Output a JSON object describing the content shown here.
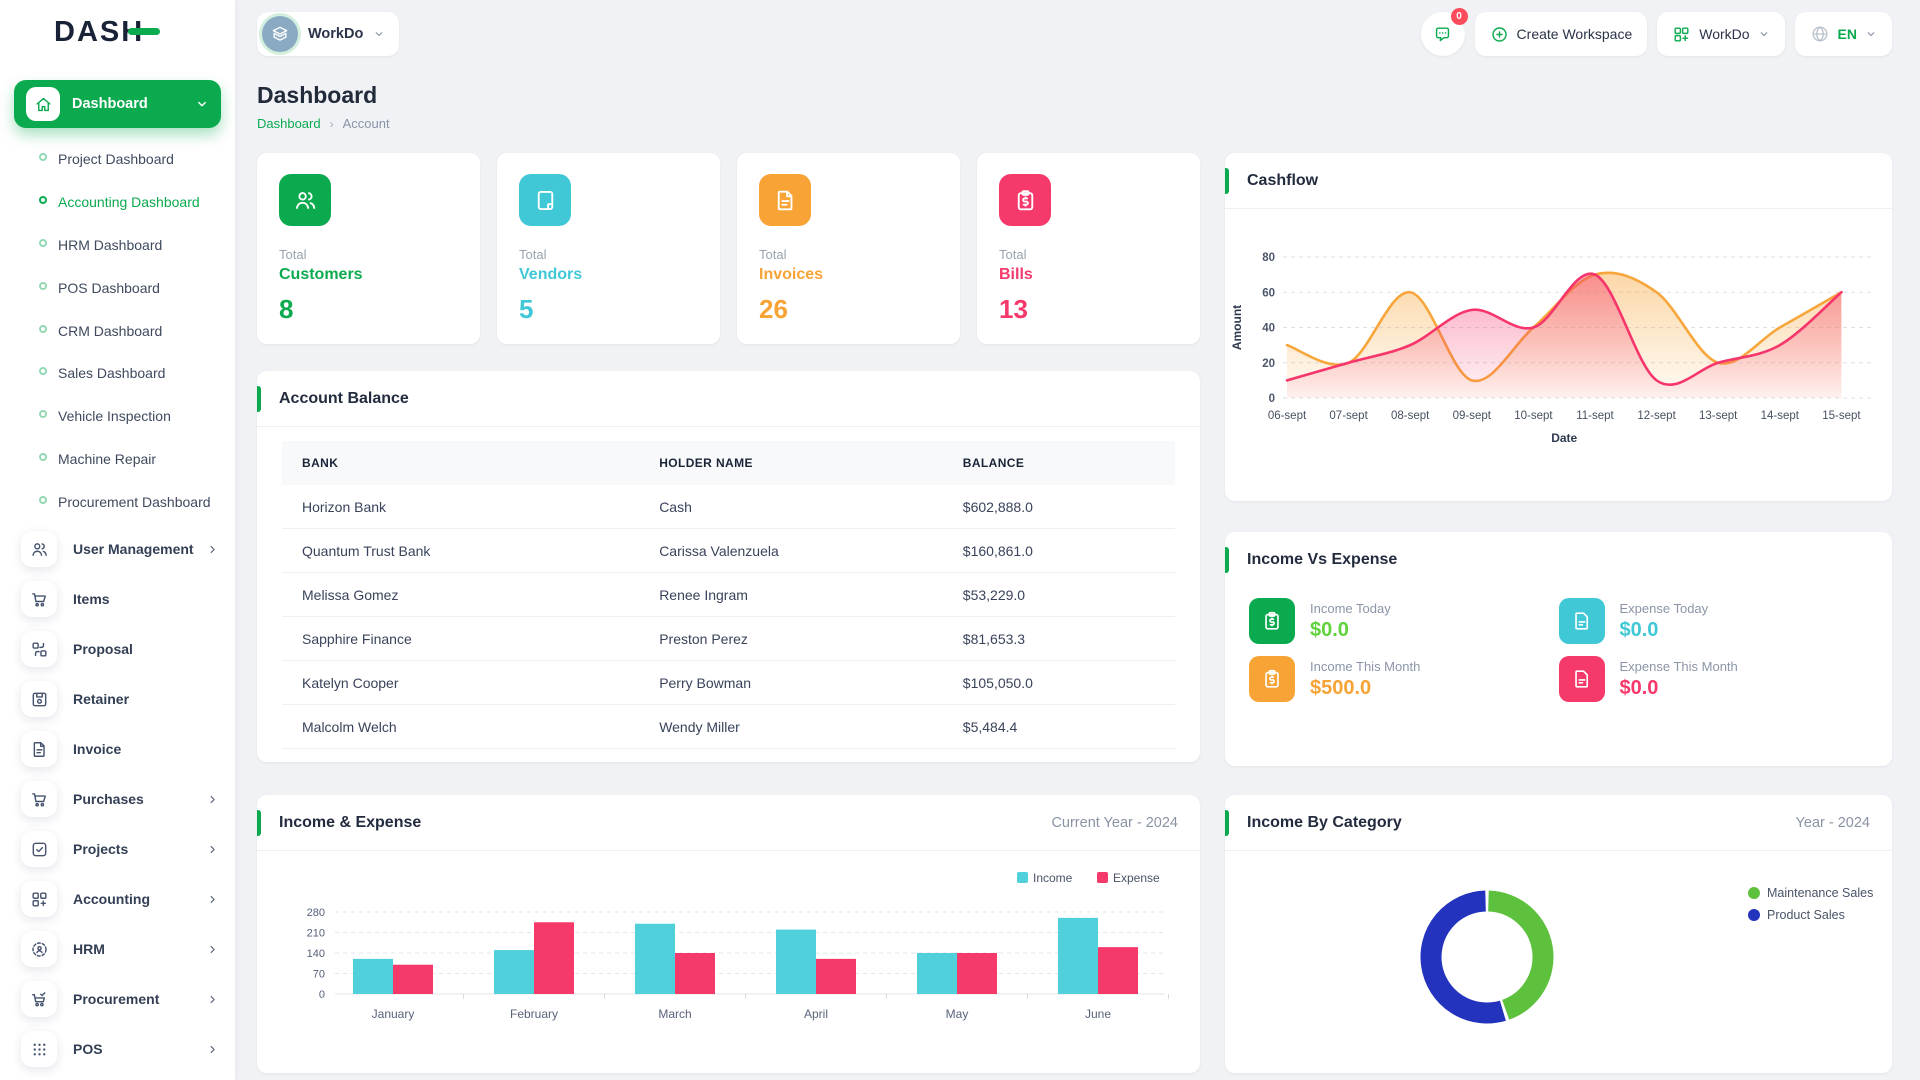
{
  "app": {
    "logo": "DASH"
  },
  "topbar": {
    "workspace_chip": {
      "label": "WorkDo",
      "icon": "building-icon"
    },
    "notification": {
      "icon": "chat-icon",
      "badge": "0"
    },
    "create_workspace": {
      "label": "Create Workspace",
      "icon": "plus-circle-icon"
    },
    "workspace_menu": {
      "label": "WorkDo",
      "icon": "apps-icon"
    },
    "language": {
      "label": "EN",
      "icon": "globe-icon"
    }
  },
  "page": {
    "title": "Dashboard",
    "breadcrumb": {
      "parent": "Dashboard",
      "current": "Account"
    }
  },
  "sidebar": {
    "items": [
      {
        "type": "parent",
        "label": "Dashboard",
        "icon": "home-icon",
        "active": true
      },
      {
        "type": "sub",
        "label": "Project Dashboard"
      },
      {
        "type": "sub",
        "label": "Accounting Dashboard",
        "active": true
      },
      {
        "type": "sub",
        "label": "HRM Dashboard"
      },
      {
        "type": "sub",
        "label": "POS Dashboard"
      },
      {
        "type": "sub",
        "label": "CRM Dashboard"
      },
      {
        "type": "sub",
        "label": "Sales Dashboard"
      },
      {
        "type": "sub",
        "label": "Vehicle Inspection"
      },
      {
        "type": "sub",
        "label": "Machine Repair"
      },
      {
        "type": "sub",
        "label": "Procurement Dashboard"
      },
      {
        "type": "icon",
        "label": "User Management",
        "icon": "users-icon",
        "chevron": true
      },
      {
        "type": "icon",
        "label": "Items",
        "icon": "cart-icon"
      },
      {
        "type": "icon",
        "label": "Proposal",
        "icon": "proposal-icon"
      },
      {
        "type": "icon",
        "label": "Retainer",
        "icon": "retainer-icon"
      },
      {
        "type": "icon",
        "label": "Invoice",
        "icon": "invoice-icon"
      },
      {
        "type": "icon",
        "label": "Purchases",
        "icon": "cart-icon",
        "chevron": true
      },
      {
        "type": "icon",
        "label": "Projects",
        "icon": "projects-icon",
        "chevron": true
      },
      {
        "type": "icon",
        "label": "Accounting",
        "icon": "accounting-icon",
        "chevron": true
      },
      {
        "type": "icon",
        "label": "HRM",
        "icon": "hrm-icon",
        "chevron": true
      },
      {
        "type": "icon",
        "label": "Procurement",
        "icon": "procurement-icon",
        "chevron": true
      },
      {
        "type": "icon",
        "label": "POS",
        "icon": "pos-icon",
        "chevron": true
      }
    ]
  },
  "stat_cards": [
    {
      "caption": "Total",
      "label": "Customers",
      "value": "8",
      "color": "#0caa4f",
      "icon": "users-icon"
    },
    {
      "caption": "Total",
      "label": "Vendors",
      "value": "5",
      "color": "#41c8d6",
      "icon": "note-icon"
    },
    {
      "caption": "Total",
      "label": "Invoices",
      "value": "26",
      "color": "#f7a336",
      "icon": "invoice-icon"
    },
    {
      "caption": "Total",
      "label": "Bills",
      "value": "13",
      "color": "#f5396b",
      "icon": "bill-icon"
    }
  ],
  "account_balance": {
    "title": "Account Balance",
    "columns": [
      "BANK",
      "HOLDER NAME",
      "BALANCE"
    ],
    "rows": [
      {
        "bank": "Horizon Bank",
        "holder": "Cash",
        "balance": "$602,888.0"
      },
      {
        "bank": "Quantum Trust Bank",
        "holder": "Carissa Valenzuela",
        "balance": "$160,861.0"
      },
      {
        "bank": "Melissa Gomez",
        "holder": "Renee Ingram",
        "balance": "$53,229.0"
      },
      {
        "bank": "Sapphire Finance",
        "holder": "Preston Perez",
        "balance": "$81,653.3"
      },
      {
        "bank": "Katelyn Cooper",
        "holder": "Perry Bowman",
        "balance": "$105,050.0"
      },
      {
        "bank": "Malcolm Welch",
        "holder": "Wendy Miller",
        "balance": "$5,484.4"
      }
    ]
  },
  "cashflow_panel": {
    "title": "Cashflow"
  },
  "income_vs_expense": {
    "title": "Income Vs Expense",
    "items": [
      {
        "label": "Income Today",
        "value": "$0.0",
        "value_color": "#5fd23d",
        "tile_color": "#0caa4f",
        "icon": "bill-icon"
      },
      {
        "label": "Expense Today",
        "value": "$0.0",
        "value_color": "#41c8d6",
        "tile_color": "#41c8d6",
        "icon": "file-icon"
      },
      {
        "label": "Income This Month",
        "value": "$500.0",
        "value_color": "#f7a336",
        "tile_color": "#f7a336",
        "icon": "bill-icon"
      },
      {
        "label": "Expense This Month",
        "value": "$0.0",
        "value_color": "#f5396b",
        "tile_color": "#f5396b",
        "icon": "file-icon"
      }
    ]
  },
  "income_expense_panel": {
    "title": "Income & Expense",
    "period": "Current Year - 2024"
  },
  "category_panel": {
    "title": "Income By Category",
    "period": "Year - 2024"
  },
  "chart_data": [
    {
      "id": "cashflow",
      "type": "area",
      "title": "Cashflow",
      "x": [
        "06-sept",
        "07-sept",
        "08-sept",
        "09-sept",
        "10-sept",
        "11-sept",
        "12-sept",
        "13-sept",
        "14-sept",
        "15-sept"
      ],
      "xlabel": "Date",
      "ylabel": "Amount",
      "ylim": [
        0,
        80
      ],
      "yticks": [
        0,
        20,
        40,
        60,
        80
      ],
      "grid": true,
      "legend_position": "none",
      "series": [
        {
          "color": "#f7a63b",
          "values": [
            30,
            20,
            60,
            10,
            40,
            70,
            60,
            20,
            40,
            60
          ]
        },
        {
          "color": "#f5356b",
          "values": [
            10,
            20,
            30,
            50,
            40,
            70,
            10,
            20,
            30,
            60
          ]
        }
      ]
    },
    {
      "id": "income_expense",
      "type": "bar",
      "title": "Income & Expense",
      "categories": [
        "January",
        "February",
        "March",
        "April",
        "May",
        "June"
      ],
      "ylim": [
        0,
        280
      ],
      "yticks": [
        0,
        70,
        140,
        210,
        280
      ],
      "grid": true,
      "legend_position": "top-right",
      "series": [
        {
          "name": "Income",
          "color": "#4fd0da",
          "values": [
            120,
            150,
            240,
            220,
            140,
            260
          ]
        },
        {
          "name": "Expense",
          "color": "#f5396b",
          "values": [
            100,
            245,
            140,
            120,
            140,
            160
          ]
        }
      ]
    },
    {
      "id": "income_by_category",
      "type": "donut",
      "title": "Income By Category",
      "labels": [
        "Maintenance Sales",
        "Product Sales"
      ],
      "values": [
        45,
        55
      ],
      "colors": [
        "#5ec13d",
        "#2433bd"
      ],
      "legend_position": "right"
    }
  ]
}
